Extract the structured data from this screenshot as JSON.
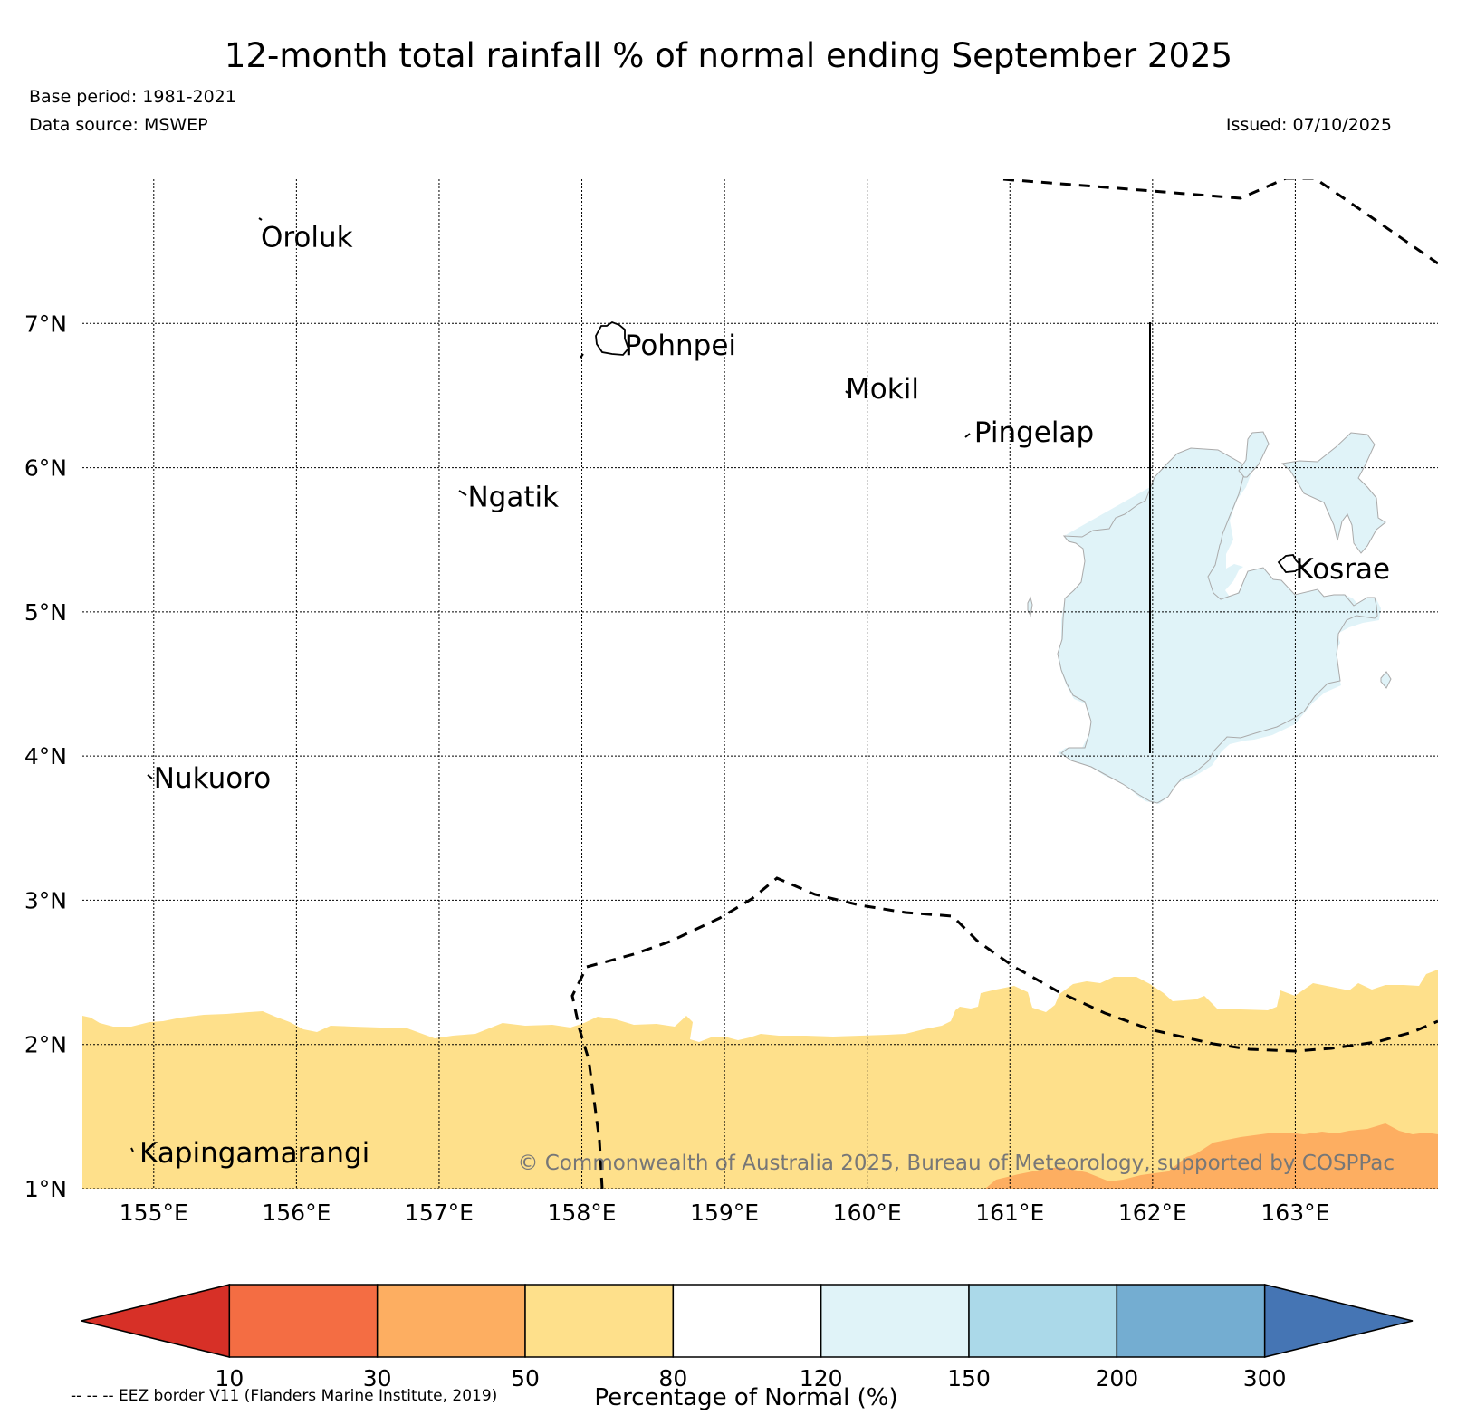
{
  "title": "12-month total rainfall % of normal ending September 2025",
  "base_period": "Base period: 1981-2021",
  "data_source": "Data source: MSWEP",
  "issued": "Issued: 07/10/2025",
  "copyright": "© Commonwealth of Australia 2025, Bureau of Meteorology, supported by COSPPac",
  "eez_note": "-- -- -- EEZ border V11 (Flanders Marine Institute, 2019)",
  "map": {
    "lon_range": [
      154.5,
      164.0
    ],
    "lat_range": [
      1.0,
      8.0
    ],
    "lon_ticks": [
      {
        "value": 155,
        "label": "155°E"
      },
      {
        "value": 156,
        "label": "156°E"
      },
      {
        "value": 157,
        "label": "157°E"
      },
      {
        "value": 158,
        "label": "158°E"
      },
      {
        "value": 159,
        "label": "159°E"
      },
      {
        "value": 160,
        "label": "160°E"
      },
      {
        "value": 161,
        "label": "161°E"
      },
      {
        "value": 162,
        "label": "162°E"
      },
      {
        "value": 163,
        "label": "163°E"
      }
    ],
    "lat_ticks": [
      {
        "value": 1,
        "label": "1°N"
      },
      {
        "value": 2,
        "label": "2°N"
      },
      {
        "value": 3,
        "label": "3°N"
      },
      {
        "value": 4,
        "label": "4°N"
      },
      {
        "value": 5,
        "label": "5°N"
      },
      {
        "value": 6,
        "label": "6°N"
      },
      {
        "value": 7,
        "label": "7°N"
      }
    ],
    "islands": [
      {
        "name": "Oroluk",
        "lon": 155.75,
        "lat": 7.6
      },
      {
        "name": "Pohnpei",
        "lon": 158.3,
        "lat": 6.85
      },
      {
        "name": "Mokil",
        "lon": 159.85,
        "lat": 6.55
      },
      {
        "name": "Pingelap",
        "lon": 160.75,
        "lat": 6.25
      },
      {
        "name": "Ngatik",
        "lon": 157.2,
        "lat": 5.8
      },
      {
        "name": "Kosrae",
        "lon": 163.0,
        "lat": 5.3
      },
      {
        "name": "Nukuoro",
        "lon": 155.0,
        "lat": 3.85
      },
      {
        "name": "Kapingamarangi",
        "lon": 154.9,
        "lat": 1.25
      }
    ]
  },
  "colorbar": {
    "label": "Percentage of Normal (%)",
    "ticks": [
      "10",
      "30",
      "50",
      "80",
      "120",
      "150",
      "200",
      "300"
    ],
    "colors": {
      "below_10": "#d73027",
      "10_30": "#f46d43",
      "30_50": "#fdae61",
      "50_80": "#fee08b",
      "80_120": "#ffffff",
      "120_150": "#e0f3f8",
      "150_200": "#abd9e9",
      "200_300": "#74add1",
      "above_300": "#4575b4"
    }
  },
  "chart_data": {
    "type": "map",
    "variable": "12-month total rainfall as percentage of normal",
    "regions": [
      {
        "description": "southern band below about 2.1°N",
        "category": "50-80%"
      },
      {
        "description": "south-east corner near 1.0-1.4°N, 161-164°E",
        "category": "30-50%"
      },
      {
        "description": "area around Kosrae, 161.4-163.7°E, 3.7-6.2°N",
        "category": "120-150%"
      },
      {
        "description": "remainder of domain",
        "category": "80-120%"
      }
    ]
  }
}
